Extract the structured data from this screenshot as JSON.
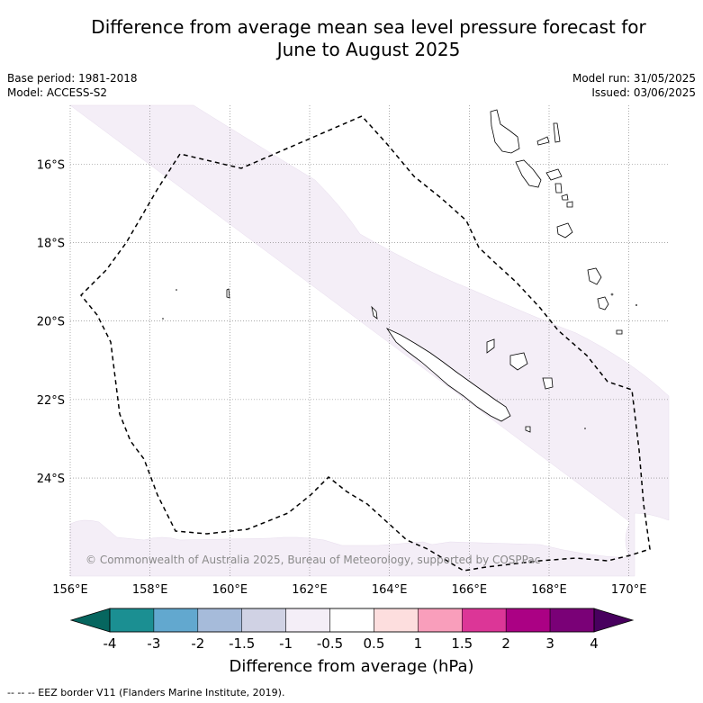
{
  "title_line1": "Difference from average mean sea level pressure forecast for",
  "title_line2": "June to August 2025",
  "meta_left": [
    "Base period: 1981-2018",
    "Model: ACCESS-S2"
  ],
  "meta_right": [
    "Model run: 31/05/2025",
    "Issued: 03/06/2025"
  ],
  "map": {
    "lon_range": [
      156,
      171
    ],
    "lat_range": [
      -26.5,
      -14.5
    ],
    "lon_ticks": [
      "156°E",
      "158°E",
      "160°E",
      "162°E",
      "164°E",
      "166°E",
      "168°E",
      "170°E"
    ],
    "lat_ticks": [
      "16°S",
      "18°S",
      "20°S",
      "22°S",
      "24°S"
    ],
    "gridlines": true,
    "shading_color": "#f4eef7",
    "copyright": "© Commonwealth of Australia 2025, Bureau of Meteorology, supported by COSPPac"
  },
  "colorbar": {
    "title": "Difference from average (hPa)",
    "tick_labels": [
      "-4",
      "-3",
      "-2",
      "-1.5",
      "-1",
      "-0.5",
      "0.5",
      "1",
      "1.5",
      "2",
      "3",
      "4"
    ],
    "colors": [
      "#1b8f92",
      "#62a8cf",
      "#a6bbda",
      "#d0d2e4",
      "#f4eef7",
      "#ffffff",
      "#fddede",
      "#f99ebb",
      "#dc3697",
      "#ab0184",
      "#7a0177"
    ],
    "extend_low_color": "#06665f",
    "extend_high_color": "#48005e"
  },
  "footnote": "-- -- -- EEZ border V11 (Flanders Marine Institute, 2019)."
}
